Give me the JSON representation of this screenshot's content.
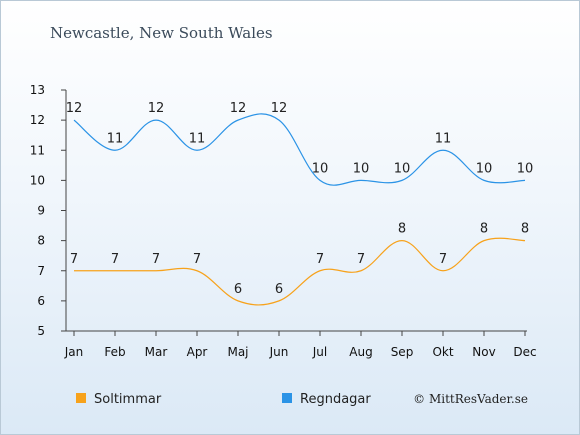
{
  "chart_data": {
    "type": "line",
    "title": "Newcastle, New South Wales",
    "categories": [
      "Jan",
      "Feb",
      "Mar",
      "Apr",
      "Maj",
      "Jun",
      "Jul",
      "Aug",
      "Sep",
      "Okt",
      "Nov",
      "Dec"
    ],
    "ylim": [
      5,
      13
    ],
    "yticks": [
      "5",
      "6",
      "7",
      "8",
      "9",
      "10",
      "11",
      "12",
      "13"
    ],
    "series": [
      {
        "name": "Soltimmar",
        "color": "#f7a21b",
        "values": [
          7,
          7,
          7,
          7,
          6,
          6,
          7,
          7,
          8,
          7,
          8,
          8
        ]
      },
      {
        "name": "Regndagar",
        "color": "#2b93e6",
        "values": [
          12,
          11,
          12,
          11,
          12,
          12,
          10,
          10,
          10,
          11,
          10,
          10
        ]
      }
    ],
    "legend_position": "bottom-left",
    "grid": false
  },
  "footer": {
    "copyright": "© MittResVader.se"
  }
}
